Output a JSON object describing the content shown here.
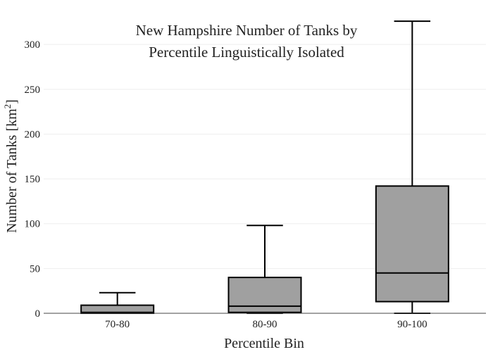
{
  "chart_data": {
    "type": "box",
    "title_lines": [
      "New Hampshire Number of Tanks by",
      "Percentile Linguistically Isolated"
    ],
    "xlabel": "Percentile Bin",
    "ylabel_main": "Number of Tanks  [km",
    "ylabel_sup": "2",
    "ylabel_end": "]",
    "ylim": [
      0,
      330
    ],
    "yticks": [
      0,
      50,
      100,
      150,
      200,
      250,
      300
    ],
    "grid": true,
    "colors": {
      "box_fill": "#a0a0a0",
      "line": "#000000",
      "grid": "#eeeeee"
    },
    "categories": [
      "70-80",
      "80-90",
      "90-100"
    ],
    "boxes": [
      {
        "category": "70-80",
        "min": 0,
        "q1": 0,
        "median": 1,
        "q3": 9,
        "max": 23
      },
      {
        "category": "80-90",
        "min": 0,
        "q1": 1,
        "median": 8,
        "q3": 40,
        "max": 98
      },
      {
        "category": "90-100",
        "min": 0,
        "q1": 13,
        "median": 45,
        "q3": 142,
        "max": 326
      }
    ]
  }
}
